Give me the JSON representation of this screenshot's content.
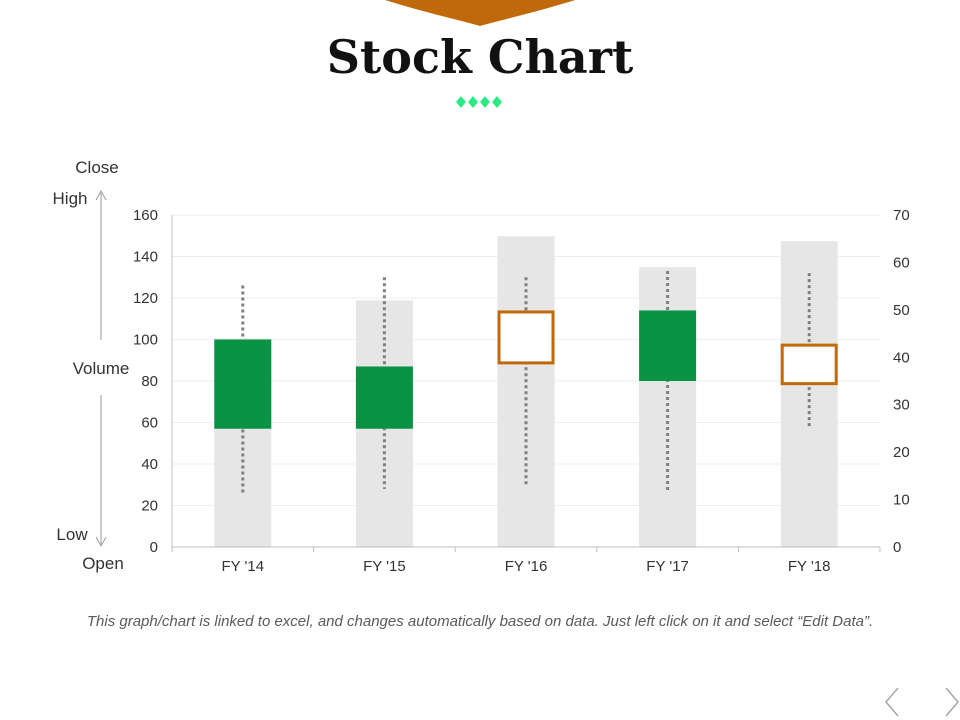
{
  "slide": {
    "title": "Stock Chart",
    "footnote": "This graph/chart is linked to excel, and changes automatically based on data. Just left click on it and select “Edit Data”.",
    "accent_color": "#C0690B",
    "ornament_color": "#2EE882"
  },
  "legend_labels": {
    "close": "Close",
    "high": "High",
    "volume": "Volume",
    "low": "Low",
    "open": "Open"
  },
  "chart_data": {
    "type": "stock-volume-open-high-low-close",
    "categories": [
      "FY '14",
      "FY '15",
      "FY '16",
      "FY '17",
      "FY '18"
    ],
    "volume": [
      44,
      52,
      65.5,
      59,
      64.5
    ],
    "open": [
      57,
      57,
      114,
      80,
      98
    ],
    "high": [
      126,
      130,
      130,
      133,
      132
    ],
    "low": [
      26,
      28,
      30,
      26,
      58
    ],
    "close": [
      100,
      87,
      88,
      114,
      78
    ],
    "left_axis": {
      "min": 0,
      "max": 160,
      "step": 20,
      "label": "Open/High/Low/Close"
    },
    "right_axis": {
      "min": 0,
      "max": 70,
      "step": 10,
      "label": "Volume"
    },
    "colors": {
      "volume": "#E6E6E6",
      "up_candle": "#089344",
      "down_candle": "#C0690B",
      "whisker": "#7F7F7F"
    }
  }
}
